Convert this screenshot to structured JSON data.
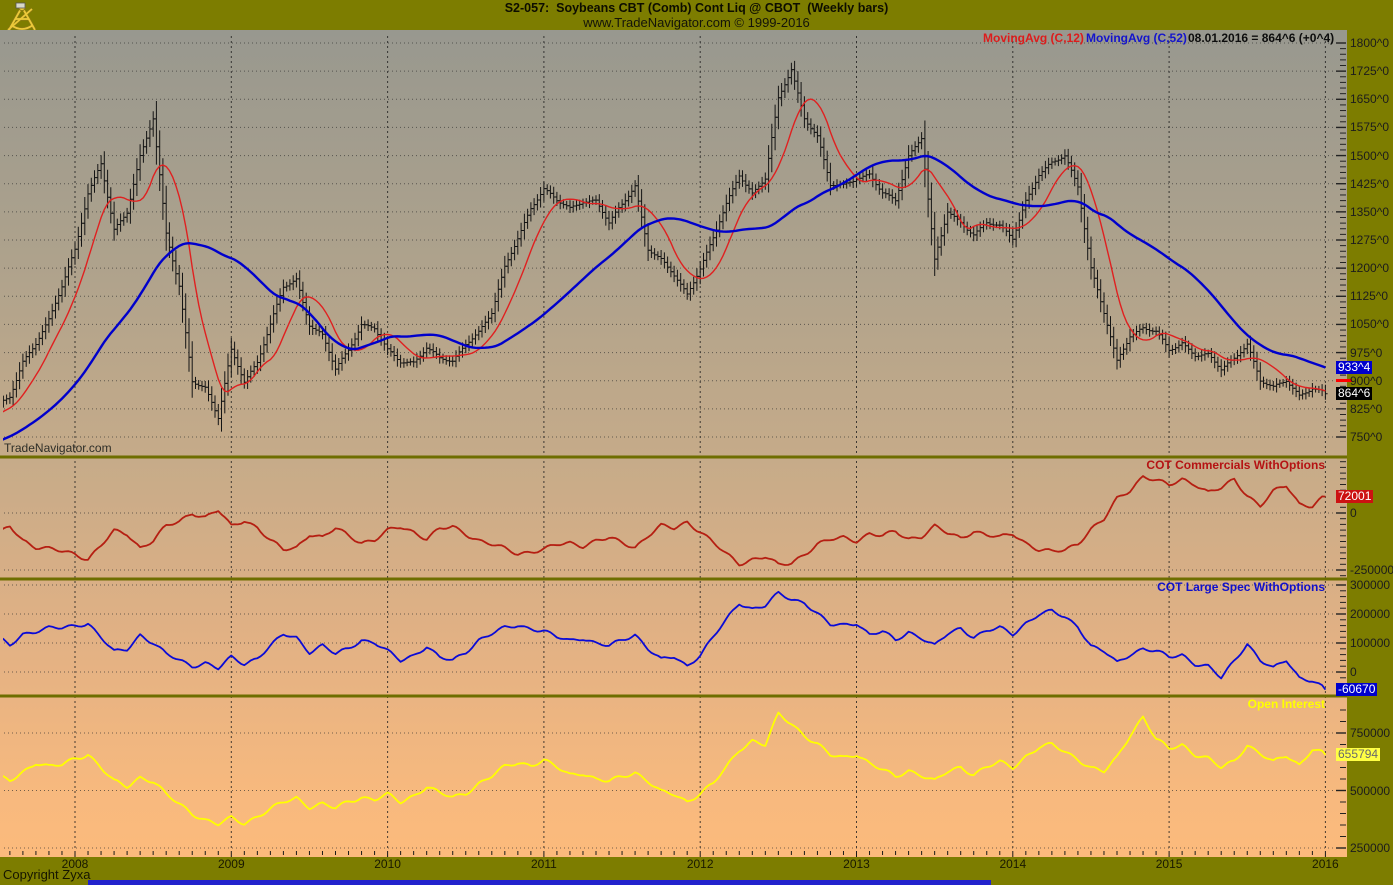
{
  "header": {
    "title": "S2-057:  Soybeans CBT (Comb) Cont Liq @ CBOT  (Weekly bars)",
    "subtitle": "www.TradeNavigator.com © 1999-2016",
    "logo_icon": "tradenavigator-sextant-logo"
  },
  "legend": {
    "ma_fast_label": "MovingAvg (C,12)",
    "ma_fast_color": "#dd1c1c",
    "ma_slow_label": "MovingAvg (C,52)",
    "ma_slow_color": "#1414cc",
    "quote_label": "08.01.2016 = 864^6 (+0^4)",
    "quote_color": "#0d0d0d"
  },
  "watermark": "TradeNavigator.com",
  "footer": {
    "copyright": "Copyright Zyxa",
    "years": [
      "2008",
      "2009",
      "2010",
      "2011",
      "2012",
      "2013",
      "2014",
      "2015",
      "2016"
    ],
    "bottom_bar_color": "#2222cc"
  },
  "colors": {
    "chrome_olive": "#7d7d00",
    "divider_olive": "#6e6e00",
    "bg_top_gray": "#98988f",
    "bg_bottom_orange": "#fcba7c",
    "bar_black": "#141414"
  },
  "chart_data": [
    {
      "type": "bar",
      "style": "ohlc-weekly-bars",
      "title": "Soybeans CBT (Comb) Cont Liq @ CBOT",
      "x_start_decimal_year": 2007.5,
      "x_step_months": 1,
      "resolution_note": "approximate monthly closes read from chart; rendered as weekly bars",
      "ylim": [
        750,
        1800
      ],
      "yticks_values": [
        1800,
        1725,
        1650,
        1575,
        1500,
        1425,
        1350,
        1275,
        1200,
        1125,
        1050,
        975,
        900,
        825,
        750
      ],
      "yticks_labels": [
        "1800^0",
        "1725^0",
        "1650^0",
        "1575^0",
        "1500^0",
        "1425^0",
        "1350^0",
        "1275^0",
        "1200^0",
        "1125^0",
        "1050^0",
        "975^0",
        "900^0",
        "825^0",
        "750^0"
      ],
      "close": [
        830,
        855,
        950,
        1000,
        1060,
        1150,
        1250,
        1400,
        1480,
        1300,
        1350,
        1500,
        1600,
        1290,
        1150,
        900,
        880,
        800,
        980,
        900,
        950,
        1050,
        1150,
        1170,
        1050,
        1020,
        930,
        980,
        1050,
        1040,
        980,
        950,
        950,
        990,
        960,
        950,
        1000,
        1030,
        1080,
        1200,
        1280,
        1360,
        1410,
        1380,
        1360,
        1380,
        1380,
        1320,
        1370,
        1420,
        1250,
        1220,
        1180,
        1130,
        1200,
        1280,
        1370,
        1450,
        1400,
        1440,
        1650,
        1730,
        1600,
        1550,
        1420,
        1420,
        1440,
        1450,
        1400,
        1380,
        1500,
        1550,
        1220,
        1350,
        1320,
        1290,
        1320,
        1310,
        1280,
        1380,
        1450,
        1480,
        1500,
        1420,
        1200,
        1080,
        950,
        1020,
        1040,
        1030,
        980,
        1000,
        970,
        970,
        930,
        960,
        1000,
        900,
        880,
        900,
        860,
        880,
        865
      ],
      "overlays": [
        {
          "name": "MovingAvg (C,12)",
          "color": "#e02020",
          "period_weeks": 12,
          "derived": true
        },
        {
          "name": "MovingAvg (C,52)",
          "color": "#0000cc",
          "period_weeks": 52,
          "derived": true
        }
      ],
      "tags": [
        {
          "label": "933^4",
          "value": 933.5,
          "bg": "#0000cc",
          "fg": "#ffffff"
        },
        {
          "label": "864^6",
          "value": 864.75,
          "bg": "#000000",
          "fg": "#ffffff"
        }
      ],
      "marker": {
        "value": 900,
        "color": "#ff0000"
      }
    },
    {
      "type": "line",
      "title": "COT Commercials WithOptions",
      "title_color": "#b51313",
      "line_color": "#b51f12",
      "yticks_values": [
        0,
        -250000
      ],
      "yticks_labels": [
        "0",
        "-250000"
      ],
      "values": [
        -100000,
        -60000,
        -120000,
        -150000,
        -160000,
        -170000,
        -180000,
        -200000,
        -140000,
        -80000,
        -90000,
        -150000,
        -120000,
        -60000,
        -40000,
        0,
        -20000,
        10000,
        -60000,
        -30000,
        -60000,
        -120000,
        -160000,
        -150000,
        -90000,
        -110000,
        -70000,
        -100000,
        -130000,
        -120000,
        -80000,
        -60000,
        -80000,
        -110000,
        -70000,
        -60000,
        -90000,
        -120000,
        -140000,
        -160000,
        -180000,
        -170000,
        -160000,
        -140000,
        -130000,
        -140000,
        -120000,
        -110000,
        -130000,
        -150000,
        -100000,
        -60000,
        -70000,
        -40000,
        -80000,
        -130000,
        -180000,
        -220000,
        -200000,
        -190000,
        -230000,
        -220000,
        -180000,
        -140000,
        -120000,
        -110000,
        -120000,
        -90000,
        -100000,
        -80000,
        -110000,
        -100000,
        -60000,
        -90000,
        -110000,
        -80000,
        -100000,
        -110000,
        -90000,
        -130000,
        -160000,
        -170000,
        -160000,
        -130000,
        -70000,
        -30000,
        60000,
        100000,
        160000,
        140000,
        120000,
        150000,
        130000,
        90000,
        110000,
        150000,
        80000,
        30000,
        90000,
        120000,
        40000,
        30000,
        72001
      ],
      "tag": {
        "label": "72001",
        "value": 72001,
        "bg": "#cc1111",
        "fg": "#ffffff"
      }
    },
    {
      "type": "line",
      "title": "COT Large Spec WithOptions",
      "title_color": "#0f0fcc",
      "line_color": "#0b0bd6",
      "yticks_values": [
        300000,
        200000,
        100000,
        0
      ],
      "yticks_labels": [
        "300000",
        "200000",
        "100000",
        "0"
      ],
      "values": [
        120000,
        90000,
        130000,
        140000,
        150000,
        150000,
        160000,
        170000,
        120000,
        70000,
        80000,
        130000,
        100000,
        60000,
        40000,
        20000,
        30000,
        10000,
        50000,
        30000,
        50000,
        90000,
        130000,
        120000,
        70000,
        90000,
        60000,
        80000,
        110000,
        100000,
        70000,
        40000,
        60000,
        90000,
        50000,
        40000,
        70000,
        110000,
        130000,
        150000,
        160000,
        150000,
        140000,
        120000,
        110000,
        120000,
        100000,
        90000,
        110000,
        130000,
        80000,
        40000,
        50000,
        20000,
        60000,
        120000,
        180000,
        240000,
        220000,
        230000,
        270000,
        250000,
        240000,
        200000,
        160000,
        160000,
        170000,
        130000,
        140000,
        110000,
        140000,
        120000,
        90000,
        130000,
        150000,
        120000,
        140000,
        150000,
        130000,
        170000,
        200000,
        210000,
        190000,
        160000,
        90000,
        70000,
        30000,
        60000,
        80000,
        70000,
        50000,
        60000,
        30000,
        20000,
        -20000,
        40000,
        100000,
        40000,
        10000,
        40000,
        -20000,
        -30000,
        -60670
      ],
      "tag": {
        "label": "-60670",
        "value": -60670,
        "bg": "#0000cc",
        "fg": "#ffffff"
      }
    },
    {
      "type": "line",
      "title": "Open Interest",
      "title_color": "#ffff00",
      "line_color": "#ffff00",
      "yticks_values": [
        750000,
        500000,
        250000
      ],
      "yticks_labels": [
        "750000",
        "500000",
        "250000"
      ],
      "values": [
        560000,
        540000,
        580000,
        620000,
        600000,
        610000,
        640000,
        660000,
        600000,
        540000,
        520000,
        560000,
        540000,
        480000,
        440000,
        400000,
        370000,
        350000,
        380000,
        360000,
        390000,
        420000,
        450000,
        470000,
        430000,
        440000,
        420000,
        450000,
        470000,
        460000,
        480000,
        450000,
        480000,
        520000,
        490000,
        470000,
        490000,
        530000,
        560000,
        600000,
        620000,
        610000,
        630000,
        600000,
        570000,
        580000,
        550000,
        540000,
        560000,
        580000,
        540000,
        490000,
        480000,
        450000,
        490000,
        530000,
        600000,
        680000,
        720000,
        700000,
        830000,
        790000,
        740000,
        700000,
        650000,
        640000,
        660000,
        620000,
        590000,
        560000,
        590000,
        570000,
        540000,
        580000,
        600000,
        570000,
        600000,
        620000,
        600000,
        650000,
        690000,
        700000,
        670000,
        640000,
        600000,
        580000,
        640000,
        740000,
        820000,
        720000,
        680000,
        700000,
        660000,
        640000,
        600000,
        630000,
        700000,
        660000,
        620000,
        650000,
        610000,
        680000,
        655794
      ],
      "tag": {
        "label": "655794",
        "value": 655794,
        "bg": "#ffff44",
        "fg": "#6a6a6a"
      }
    }
  ]
}
